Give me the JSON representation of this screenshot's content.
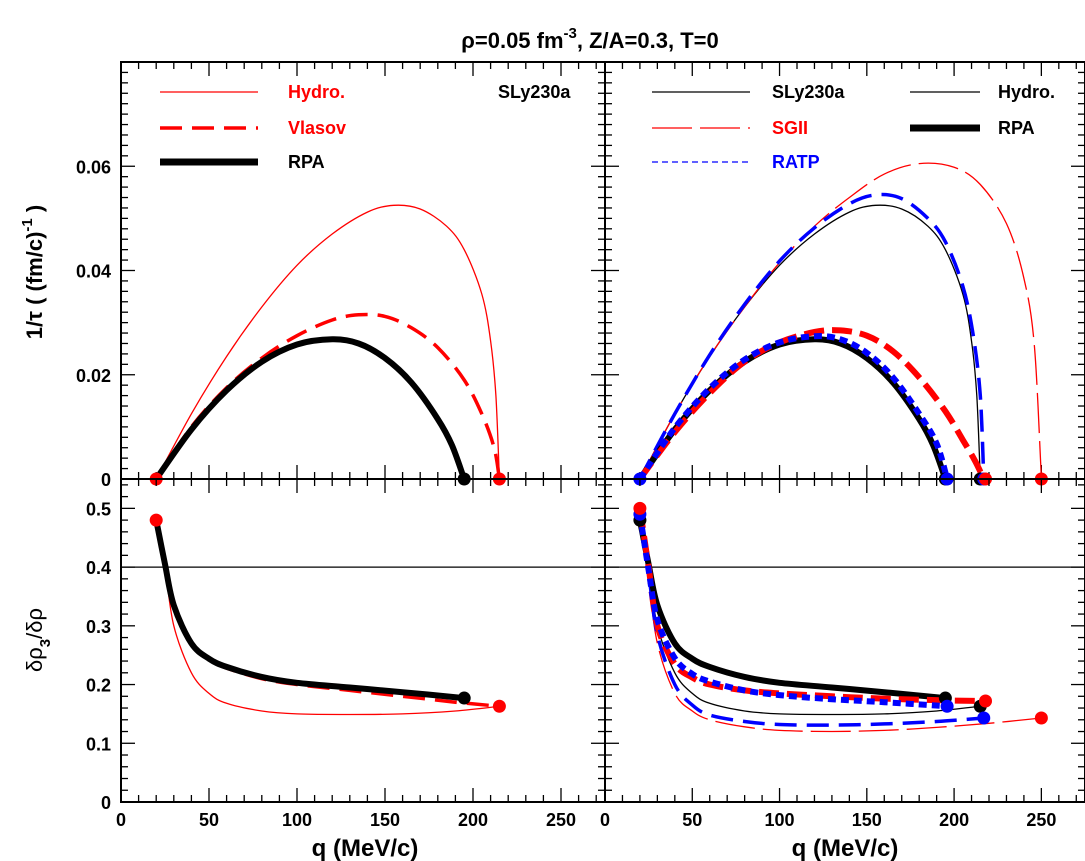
{
  "figure": {
    "title_main": "ρ=0.05 fm",
    "title_sup": "-3",
    "title_rest": ", Z/A=0.3, T=0",
    "ylabel_top": "1/τ ( (fm/c)",
    "ylabel_top_sup": "-1",
    "ylabel_top_end": " )",
    "ylabel_bottom_a": "δρ",
    "ylabel_bottom_sub": "3",
    "ylabel_bottom_b": "/δρ",
    "xlabel_left": "q (MeV/c)",
    "xlabel_right": "q (MeV/c)",
    "colors": {
      "red": "#ff0000",
      "black": "#000000",
      "blue": "#0000ff"
    }
  },
  "chart_data": [
    {
      "id": "top-left",
      "type": "line",
      "xlim": [
        0,
        275
      ],
      "ylim": [
        0,
        0.08
      ],
      "x_ticks": [
        0,
        50,
        100,
        150,
        200,
        250
      ],
      "y_ticks": [
        0,
        0.02,
        0.04,
        0.06
      ],
      "y_tick_labels": [
        "0",
        "0.02",
        "0.04",
        "0.06"
      ],
      "annotation": "SLy230a",
      "legend": [
        {
          "label": "Hydro.",
          "color": "#ff0000",
          "style": "thin"
        },
        {
          "label": "Vlasov",
          "color": "#ff0000",
          "style": "dashed"
        },
        {
          "label": "RPA",
          "color": "#000000",
          "style": "thick"
        }
      ],
      "series": [
        {
          "name": "Hydro.",
          "color": "#ff0000",
          "style": "thin",
          "x": [
            20,
            40,
            60,
            80,
            100,
            120,
            140,
            155,
            170,
            185,
            195,
            205,
            210,
            213,
            215
          ],
          "y": [
            0,
            0.0125,
            0.0235,
            0.033,
            0.041,
            0.047,
            0.0512,
            0.0525,
            0.0518,
            0.0485,
            0.044,
            0.0355,
            0.0265,
            0.016,
            0
          ]
        },
        {
          "name": "Vlasov",
          "color": "#ff0000",
          "style": "dashed",
          "x": [
            20,
            40,
            60,
            80,
            100,
            120,
            135,
            150,
            165,
            180,
            195,
            205,
            212,
            215
          ],
          "y": [
            0,
            0.01,
            0.0175,
            0.0232,
            0.0275,
            0.0305,
            0.0315,
            0.0312,
            0.029,
            0.0252,
            0.019,
            0.0125,
            0.006,
            0
          ]
        },
        {
          "name": "RPA",
          "color": "#000000",
          "style": "thick",
          "x": [
            20,
            40,
            60,
            80,
            100,
            120,
            135,
            150,
            165,
            180,
            188,
            195
          ],
          "y": [
            0,
            0.0095,
            0.017,
            0.0225,
            0.0258,
            0.0268,
            0.026,
            0.0232,
            0.0185,
            0.0115,
            0.0065,
            0
          ]
        }
      ],
      "markers": [
        {
          "x": 20,
          "y": 0,
          "color": "#ff0000"
        },
        {
          "x": 195,
          "y": 0,
          "color": "#000000"
        },
        {
          "x": 215,
          "y": 0,
          "color": "#ff0000"
        }
      ]
    },
    {
      "id": "top-right",
      "type": "line",
      "xlim": [
        0,
        275
      ],
      "ylim": [
        0,
        0.08
      ],
      "x_ticks": [
        0,
        50,
        100,
        150,
        200,
        250
      ],
      "y_ticks": [
        0,
        0.02,
        0.04,
        0.06
      ],
      "legend": [
        {
          "label": "SLy230a",
          "color": "#000000",
          "style": "thin"
        },
        {
          "label": "Hydro.",
          "color": "#000000",
          "style": "thin"
        },
        {
          "label": "SGII",
          "color": "#ff0000",
          "style": "longdash"
        },
        {
          "label": "RPA",
          "color": "#000000",
          "style": "thick"
        },
        {
          "label": "RATP",
          "color": "#0000ff",
          "style": "dashed"
        }
      ],
      "series": [
        {
          "name": "SLy230a Hydro.",
          "color": "#000000",
          "style": "thin",
          "x": [
            20,
            40,
            60,
            80,
            100,
            120,
            140,
            155,
            170,
            185,
            195,
            205,
            210,
            213,
            215
          ],
          "y": [
            0,
            0.0125,
            0.0235,
            0.033,
            0.041,
            0.047,
            0.0512,
            0.0525,
            0.0518,
            0.0485,
            0.044,
            0.0355,
            0.0265,
            0.016,
            0
          ]
        },
        {
          "name": "SGII Hydro.",
          "color": "#ff0000",
          "style": "longdash",
          "x": [
            20,
            40,
            60,
            80,
            100,
            120,
            140,
            160,
            180,
            200,
            215,
            230,
            240,
            246,
            250
          ],
          "y": [
            0,
            0.0125,
            0.0235,
            0.033,
            0.0415,
            0.0485,
            0.054,
            0.0585,
            0.0605,
            0.0598,
            0.0565,
            0.049,
            0.0385,
            0.0255,
            0
          ]
        },
        {
          "name": "RATP Hydro.",
          "color": "#0000ff",
          "style": "dashed",
          "x": [
            20,
            40,
            60,
            80,
            100,
            120,
            140,
            155,
            170,
            185,
            195,
            205,
            211,
            215,
            217
          ],
          "y": [
            0,
            0.0125,
            0.0238,
            0.0335,
            0.0418,
            0.0482,
            0.0528,
            0.0545,
            0.0538,
            0.05,
            0.0455,
            0.037,
            0.0275,
            0.016,
            0
          ]
        },
        {
          "name": "SLy230a RPA",
          "color": "#000000",
          "style": "thick",
          "x": [
            20,
            40,
            60,
            80,
            100,
            120,
            135,
            150,
            165,
            180,
            188,
            195
          ],
          "y": [
            0,
            0.0095,
            0.017,
            0.0225,
            0.0258,
            0.0268,
            0.026,
            0.0232,
            0.0185,
            0.0115,
            0.0065,
            0
          ]
        },
        {
          "name": "SGII RPA",
          "color": "#ff0000",
          "style": "thickdash",
          "x": [
            20,
            40,
            60,
            80,
            100,
            120,
            135,
            150,
            165,
            180,
            195,
            205,
            212,
            217
          ],
          "y": [
            0,
            0.009,
            0.0165,
            0.0225,
            0.0262,
            0.0282,
            0.0285,
            0.0275,
            0.0245,
            0.0195,
            0.013,
            0.0075,
            0.0035,
            0
          ]
        },
        {
          "name": "RATP RPA",
          "color": "#0000ff",
          "style": "thickdot",
          "x": [
            20,
            40,
            60,
            80,
            100,
            120,
            135,
            150,
            165,
            180,
            190,
            196
          ],
          "y": [
            0,
            0.0098,
            0.0174,
            0.0229,
            0.0262,
            0.0274,
            0.0268,
            0.0242,
            0.0195,
            0.0125,
            0.0068,
            0
          ]
        }
      ],
      "markers": [
        {
          "x": 20,
          "y": 0,
          "color": "#0000ff"
        },
        {
          "x": 195,
          "y": 0,
          "color": "#000000"
        },
        {
          "x": 196,
          "y": 0,
          "color": "#0000ff"
        },
        {
          "x": 215,
          "y": 0,
          "color": "#000000"
        },
        {
          "x": 217,
          "y": 0,
          "color": "#0000ff"
        },
        {
          "x": 218,
          "y": 0,
          "color": "#ff0000"
        },
        {
          "x": 250,
          "y": 0,
          "color": "#ff0000"
        }
      ]
    },
    {
      "id": "bottom-left",
      "type": "line",
      "xlim": [
        0,
        275
      ],
      "ylim": [
        0,
        0.55
      ],
      "x_ticks": [
        0,
        50,
        100,
        150,
        200,
        250
      ],
      "x_tick_labels": [
        "0",
        "50",
        "100",
        "150",
        "200",
        "250"
      ],
      "y_ticks": [
        0,
        0.1,
        0.2,
        0.3,
        0.4,
        0.5
      ],
      "y_tick_labels": [
        "0",
        "0.1",
        "0.2",
        "0.3",
        "0.4",
        "0.5"
      ],
      "hline": 0.4,
      "series": [
        {
          "name": "Hydro.",
          "color": "#ff0000",
          "style": "thin",
          "x": [
            20,
            25,
            30,
            40,
            50,
            60,
            80,
            100,
            130,
            160,
            190,
            215
          ],
          "y": [
            0.48,
            0.4,
            0.3,
            0.22,
            0.185,
            0.168,
            0.155,
            0.15,
            0.149,
            0.15,
            0.155,
            0.163
          ]
        },
        {
          "name": "Vlasov",
          "color": "#ff0000",
          "style": "dashed",
          "x": [
            20,
            25,
            30,
            40,
            50,
            60,
            80,
            100,
            130,
            160,
            190,
            215
          ],
          "y": [
            0.48,
            0.405,
            0.335,
            0.27,
            0.243,
            0.228,
            0.21,
            0.2,
            0.19,
            0.18,
            0.17,
            0.163
          ]
        },
        {
          "name": "RPA",
          "color": "#000000",
          "style": "thick",
          "x": [
            20,
            25,
            30,
            40,
            50,
            60,
            80,
            100,
            130,
            160,
            195
          ],
          "y": [
            0.48,
            0.405,
            0.335,
            0.27,
            0.244,
            0.23,
            0.213,
            0.203,
            0.195,
            0.187,
            0.177
          ]
        }
      ],
      "markers": [
        {
          "x": 20,
          "y": 0.48,
          "color": "#ff0000"
        },
        {
          "x": 195,
          "y": 0.177,
          "color": "#000000"
        },
        {
          "x": 215,
          "y": 0.163,
          "color": "#ff0000"
        }
      ]
    },
    {
      "id": "bottom-right",
      "type": "line",
      "xlim": [
        0,
        275
      ],
      "ylim": [
        0,
        0.55
      ],
      "x_ticks": [
        0,
        50,
        100,
        150,
        200,
        250
      ],
      "x_tick_labels": [
        "0",
        "50",
        "100",
        "150",
        "200",
        "250"
      ],
      "y_ticks": [
        0,
        0.1,
        0.2,
        0.3,
        0.4,
        0.5
      ],
      "hline": 0.4,
      "series": [
        {
          "name": "SLy230a Hydro.",
          "color": "#000000",
          "style": "thin",
          "x": [
            20,
            25,
            30,
            40,
            50,
            60,
            80,
            100,
            130,
            160,
            190,
            215
          ],
          "y": [
            0.48,
            0.4,
            0.3,
            0.22,
            0.185,
            0.168,
            0.155,
            0.15,
            0.149,
            0.15,
            0.155,
            0.163
          ]
        },
        {
          "name": "SGII Hydro.",
          "color": "#ff0000",
          "style": "longdash",
          "x": [
            20,
            25,
            30,
            40,
            50,
            60,
            80,
            100,
            130,
            160,
            190,
            220,
            250
          ],
          "y": [
            0.5,
            0.38,
            0.27,
            0.185,
            0.155,
            0.14,
            0.128,
            0.122,
            0.12,
            0.122,
            0.127,
            0.134,
            0.143
          ]
        },
        {
          "name": "RATP Hydro.",
          "color": "#0000ff",
          "style": "dashed",
          "x": [
            20,
            25,
            30,
            40,
            50,
            60,
            80,
            100,
            130,
            160,
            190,
            217
          ],
          "y": [
            0.49,
            0.39,
            0.285,
            0.2,
            0.165,
            0.148,
            0.137,
            0.132,
            0.131,
            0.133,
            0.137,
            0.143
          ]
        },
        {
          "name": "SLy230a RPA",
          "color": "#000000",
          "style": "thick",
          "x": [
            20,
            25,
            30,
            40,
            50,
            60,
            80,
            100,
            130,
            160,
            195
          ],
          "y": [
            0.48,
            0.405,
            0.335,
            0.27,
            0.244,
            0.23,
            0.213,
            0.203,
            0.195,
            0.187,
            0.177
          ]
        },
        {
          "name": "SGII RPA",
          "color": "#ff0000",
          "style": "thickdash",
          "x": [
            20,
            25,
            30,
            40,
            50,
            60,
            80,
            100,
            130,
            160,
            195,
            218
          ],
          "y": [
            0.5,
            0.4,
            0.3,
            0.235,
            0.212,
            0.2,
            0.19,
            0.185,
            0.18,
            0.176,
            0.173,
            0.172
          ]
        },
        {
          "name": "RATP RPA",
          "color": "#0000ff",
          "style": "thickdot",
          "x": [
            20,
            25,
            30,
            40,
            50,
            60,
            80,
            100,
            130,
            160,
            196
          ],
          "y": [
            0.49,
            0.395,
            0.31,
            0.245,
            0.218,
            0.205,
            0.19,
            0.182,
            0.175,
            0.17,
            0.163
          ]
        }
      ],
      "markers": [
        {
          "x": 20,
          "y": 0.48,
          "color": "#000000"
        },
        {
          "x": 20,
          "y": 0.49,
          "color": "#0000ff"
        },
        {
          "x": 20,
          "y": 0.5,
          "color": "#ff0000"
        },
        {
          "x": 195,
          "y": 0.177,
          "color": "#000000"
        },
        {
          "x": 196,
          "y": 0.163,
          "color": "#0000ff"
        },
        {
          "x": 215,
          "y": 0.163,
          "color": "#000000"
        },
        {
          "x": 217,
          "y": 0.143,
          "color": "#0000ff"
        },
        {
          "x": 218,
          "y": 0.172,
          "color": "#ff0000"
        },
        {
          "x": 250,
          "y": 0.143,
          "color": "#ff0000"
        }
      ]
    }
  ]
}
